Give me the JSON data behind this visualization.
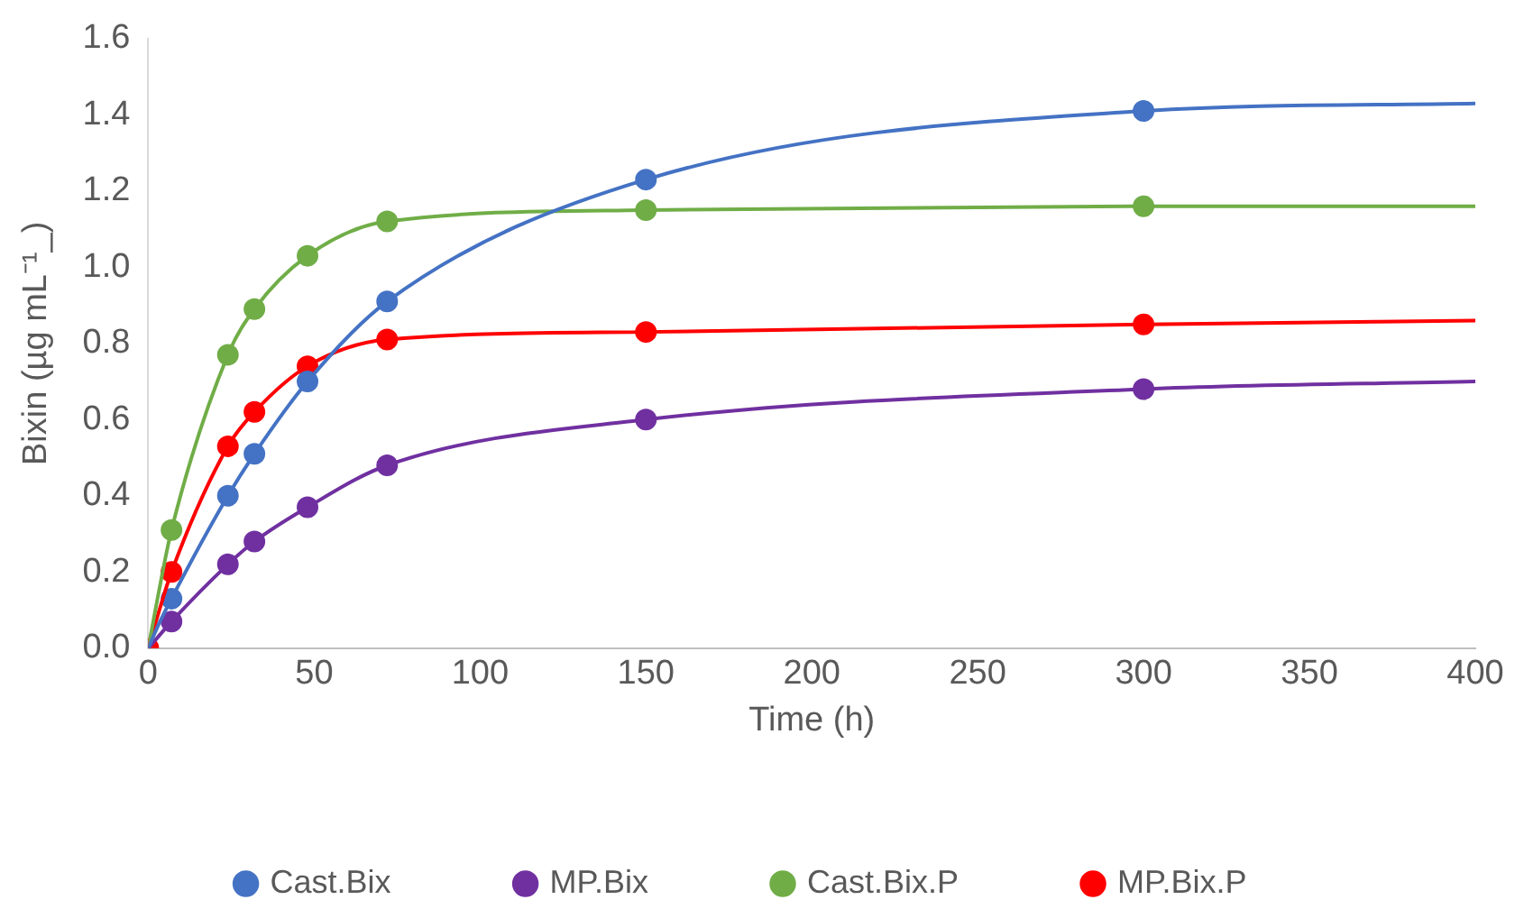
{
  "chart_data": {
    "type": "scatter",
    "xlabel": "Time (h)",
    "ylabel": "Bixin (µg mL⁻¹_)",
    "xlim": [
      0,
      400
    ],
    "xticks": [
      0,
      50,
      100,
      150,
      200,
      250,
      300,
      350,
      400
    ],
    "ylim": [
      0,
      1.6
    ],
    "yticks": [
      {
        "value": 0,
        "label": "0.0"
      },
      0.2,
      0.4,
      0.6,
      0.8,
      {
        "value": 1,
        "label": "1.0"
      },
      1.2,
      1.4,
      1.6
    ],
    "grid": false,
    "legend": "bottom",
    "marker": "circle",
    "x": [
      0,
      3,
      7,
      24,
      32,
      48,
      72,
      150,
      300
    ],
    "series": [
      {
        "type": "line",
        "marker": "none",
        "color": "#4472c4",
        "x": [
          0,
          3,
          7,
          24,
          32,
          48,
          72,
          150,
          300,
          400
        ],
        "values": [
          0,
          0.06,
          0.13,
          0.4,
          0.51,
          0.7,
          0.91,
          1.23,
          1.41,
          1.43
        ]
      },
      {
        "type": "line",
        "marker": "none",
        "color": "#7030a0",
        "x": [
          0,
          3,
          7,
          24,
          32,
          48,
          72,
          150,
          300,
          400
        ],
        "values": [
          0,
          0.03,
          0.07,
          0.22,
          0.28,
          0.37,
          0.48,
          0.6,
          0.68,
          0.7
        ]
      },
      {
        "type": "line",
        "marker": "none",
        "color": "#70ad47",
        "x": [
          0,
          3,
          7,
          24,
          32,
          48,
          72,
          150,
          300,
          400
        ],
        "values": [
          0,
          0.14,
          0.31,
          0.77,
          0.89,
          1.03,
          1.12,
          1.15,
          1.16,
          1.16
        ]
      },
      {
        "type": "line",
        "marker": "none",
        "color": "#ff0000",
        "x": [
          0,
          3,
          7,
          24,
          32,
          48,
          72,
          150,
          300,
          400
        ],
        "values": [
          0,
          0.09,
          0.2,
          0.53,
          0.62,
          0.74,
          0.81,
          0.83,
          0.85,
          0.86
        ]
      },
      {
        "name": "Cast.Bix",
        "color": "#4472c4",
        "values": [
          null,
          null,
          0.13,
          0.4,
          0.51,
          0.7,
          0.91,
          1.23,
          1.41
        ]
      },
      {
        "name": "MP.Bix",
        "color": "#7030a0",
        "values": [
          null,
          null,
          0.07,
          0.22,
          0.28,
          0.37,
          0.48,
          0.6,
          0.68
        ]
      },
      {
        "name": "Cast.Bix.P",
        "color": "#70ad47",
        "values": [
          null,
          null,
          0.31,
          0.77,
          0.89,
          1.03,
          1.12,
          1.15,
          1.16
        ]
      },
      {
        "name": "MP.Bix.P",
        "color": "#ff0000",
        "values": [
          0,
          null,
          0.2,
          0.53,
          0.62,
          0.74,
          0.81,
          0.83,
          0.85
        ]
      }
    ]
  }
}
